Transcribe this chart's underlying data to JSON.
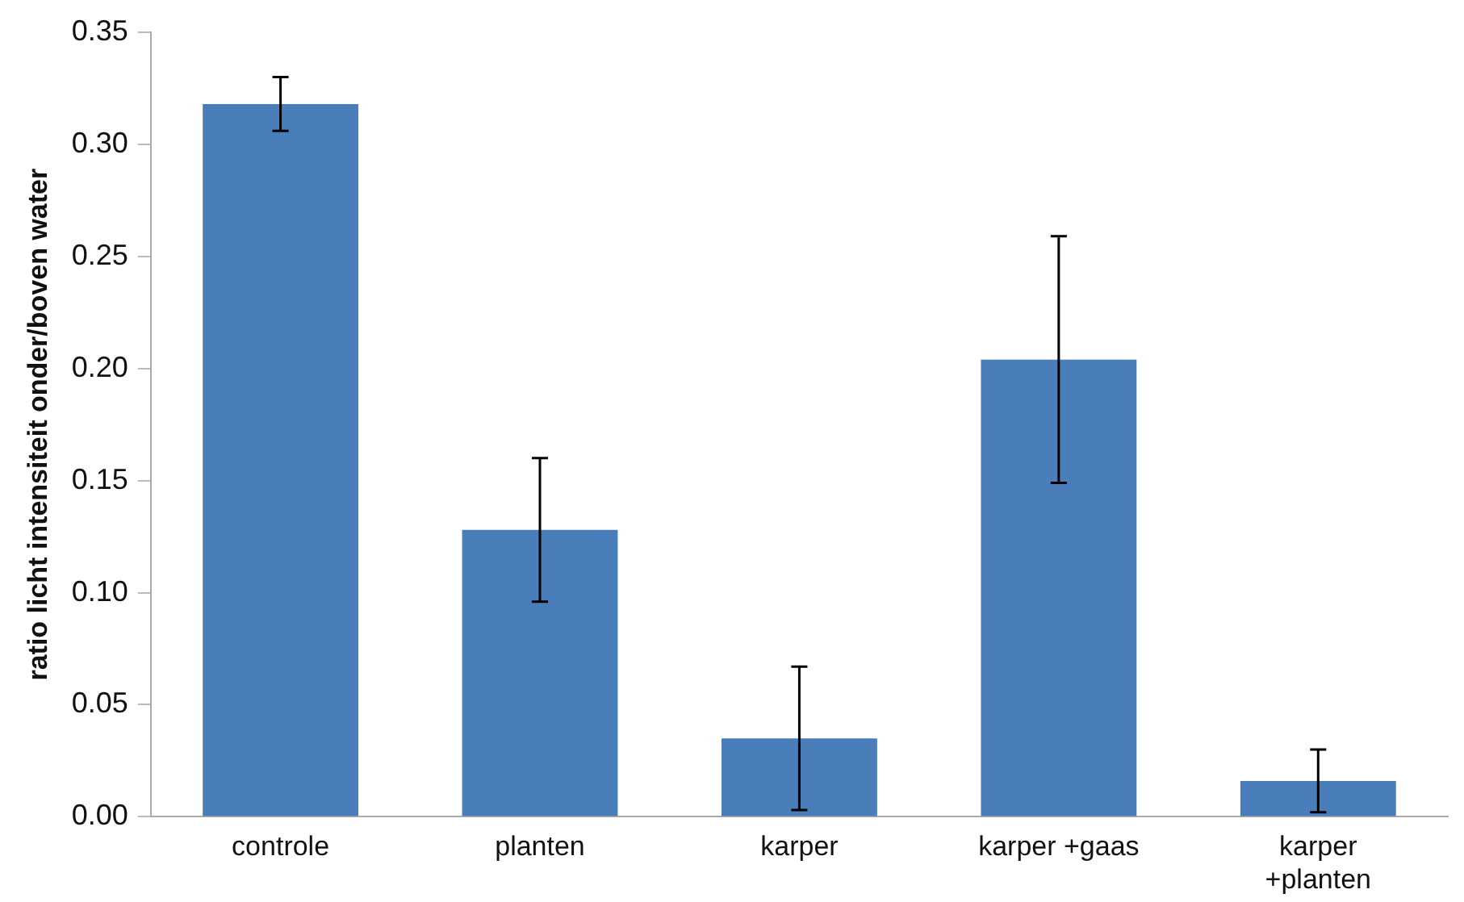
{
  "chart_data": {
    "type": "bar",
    "ylabel": "ratio licht intensiteit onder/boven water",
    "categories": [
      "controle",
      "planten",
      "karper",
      "karper +gaas",
      "karper +planten"
    ],
    "values": [
      0.318,
      0.128,
      0.035,
      0.204,
      0.016
    ],
    "errors": [
      0.012,
      0.032,
      0.032,
      0.055,
      0.014
    ],
    "color": "#4a7ebb",
    "ylim": [
      0,
      0.35
    ],
    "yticks": [
      {
        "value": 0,
        "label": "0.00"
      },
      {
        "value": 0.05,
        "label": "0.05"
      },
      {
        "value": 0.1,
        "label": "0.10"
      },
      {
        "value": 0.15,
        "label": "0.15"
      },
      {
        "value": 0.2,
        "label": "0.20"
      },
      {
        "value": 0.25,
        "label": "0.25"
      },
      {
        "value": 0.3,
        "label": "0.30"
      },
      {
        "value": 0.35,
        "label": "0.35"
      }
    ],
    "grid": false,
    "legend": false
  }
}
